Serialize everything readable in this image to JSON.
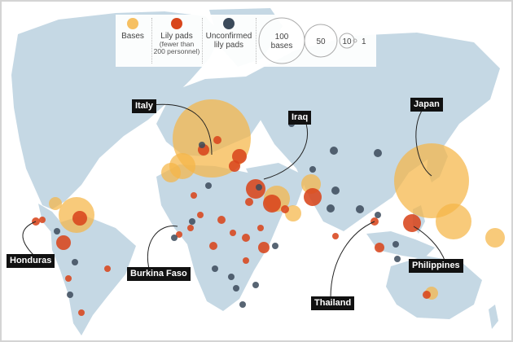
{
  "legend": {
    "bases": "Bases",
    "lily_pads_line1": "Lily pads",
    "lily_pads_line2": "(fewer than",
    "lily_pads_line3": "200 personnel)",
    "unconfirmed_line1": "Unconfirmed",
    "unconfirmed_line2": "lily pads",
    "size_100_line1": "100",
    "size_100_line2": "bases",
    "size_50": "50",
    "size_10": "10",
    "size_1": "1"
  },
  "labels": {
    "italy": "Italy",
    "iraq": "Iraq",
    "japan": "Japan",
    "honduras": "Honduras",
    "burkina_faso": "Burkina Faso",
    "thailand": "Thailand",
    "philippines": "Philippines"
  },
  "colors": {
    "ocean": "#ffffff",
    "land": "#c5d8e4",
    "bases": "#f5b547",
    "lily_pads": "#d8461c",
    "unconfirmed": "#3b4a5a"
  }
}
